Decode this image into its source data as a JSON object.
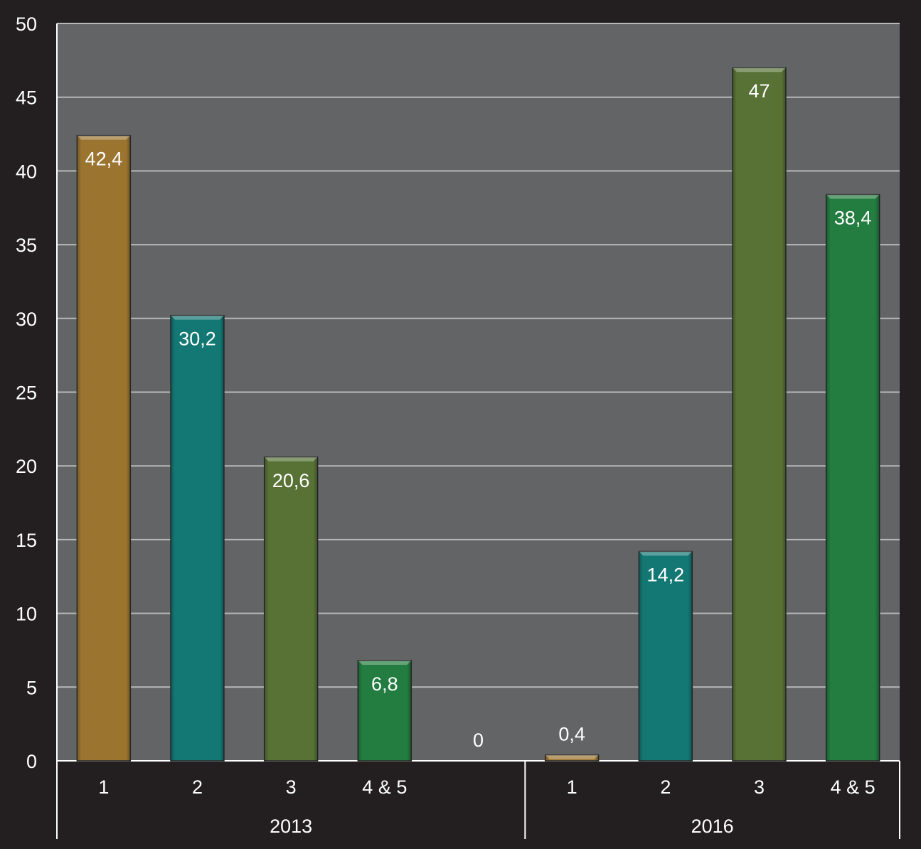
{
  "chart_data": {
    "type": "bar",
    "title": "",
    "xlabel": "",
    "ylabel": "",
    "ylim": [
      0,
      50
    ],
    "yticks": [
      "0",
      "5",
      "10",
      "15",
      "20",
      "25",
      "30",
      "35",
      "40",
      "45",
      "50"
    ],
    "grid": true,
    "groups": [
      {
        "label": "2013",
        "categories": [
          "1",
          "2",
          "3",
          "4 & 5",
          ""
        ],
        "values": [
          42.4,
          30.2,
          20.6,
          6.8,
          0
        ],
        "labels": [
          "42,4",
          "30,2",
          "20,6",
          "6,8",
          "0"
        ]
      },
      {
        "label": "2016",
        "categories": [
          "1",
          "2",
          "3",
          "4 & 5"
        ],
        "values": [
          0.4,
          14.2,
          47,
          38.4
        ],
        "labels": [
          "0,4",
          "14,2",
          "47",
          "38,4"
        ]
      }
    ],
    "category_colors": {
      "1": "#9b7430",
      "2": "#137874",
      "3": "#587236",
      "4 & 5": "#237c40"
    }
  },
  "colors": {
    "background": "#231f20",
    "plot": "#636466",
    "grid": "#b8b8b8",
    "text": "#ffffff"
  }
}
